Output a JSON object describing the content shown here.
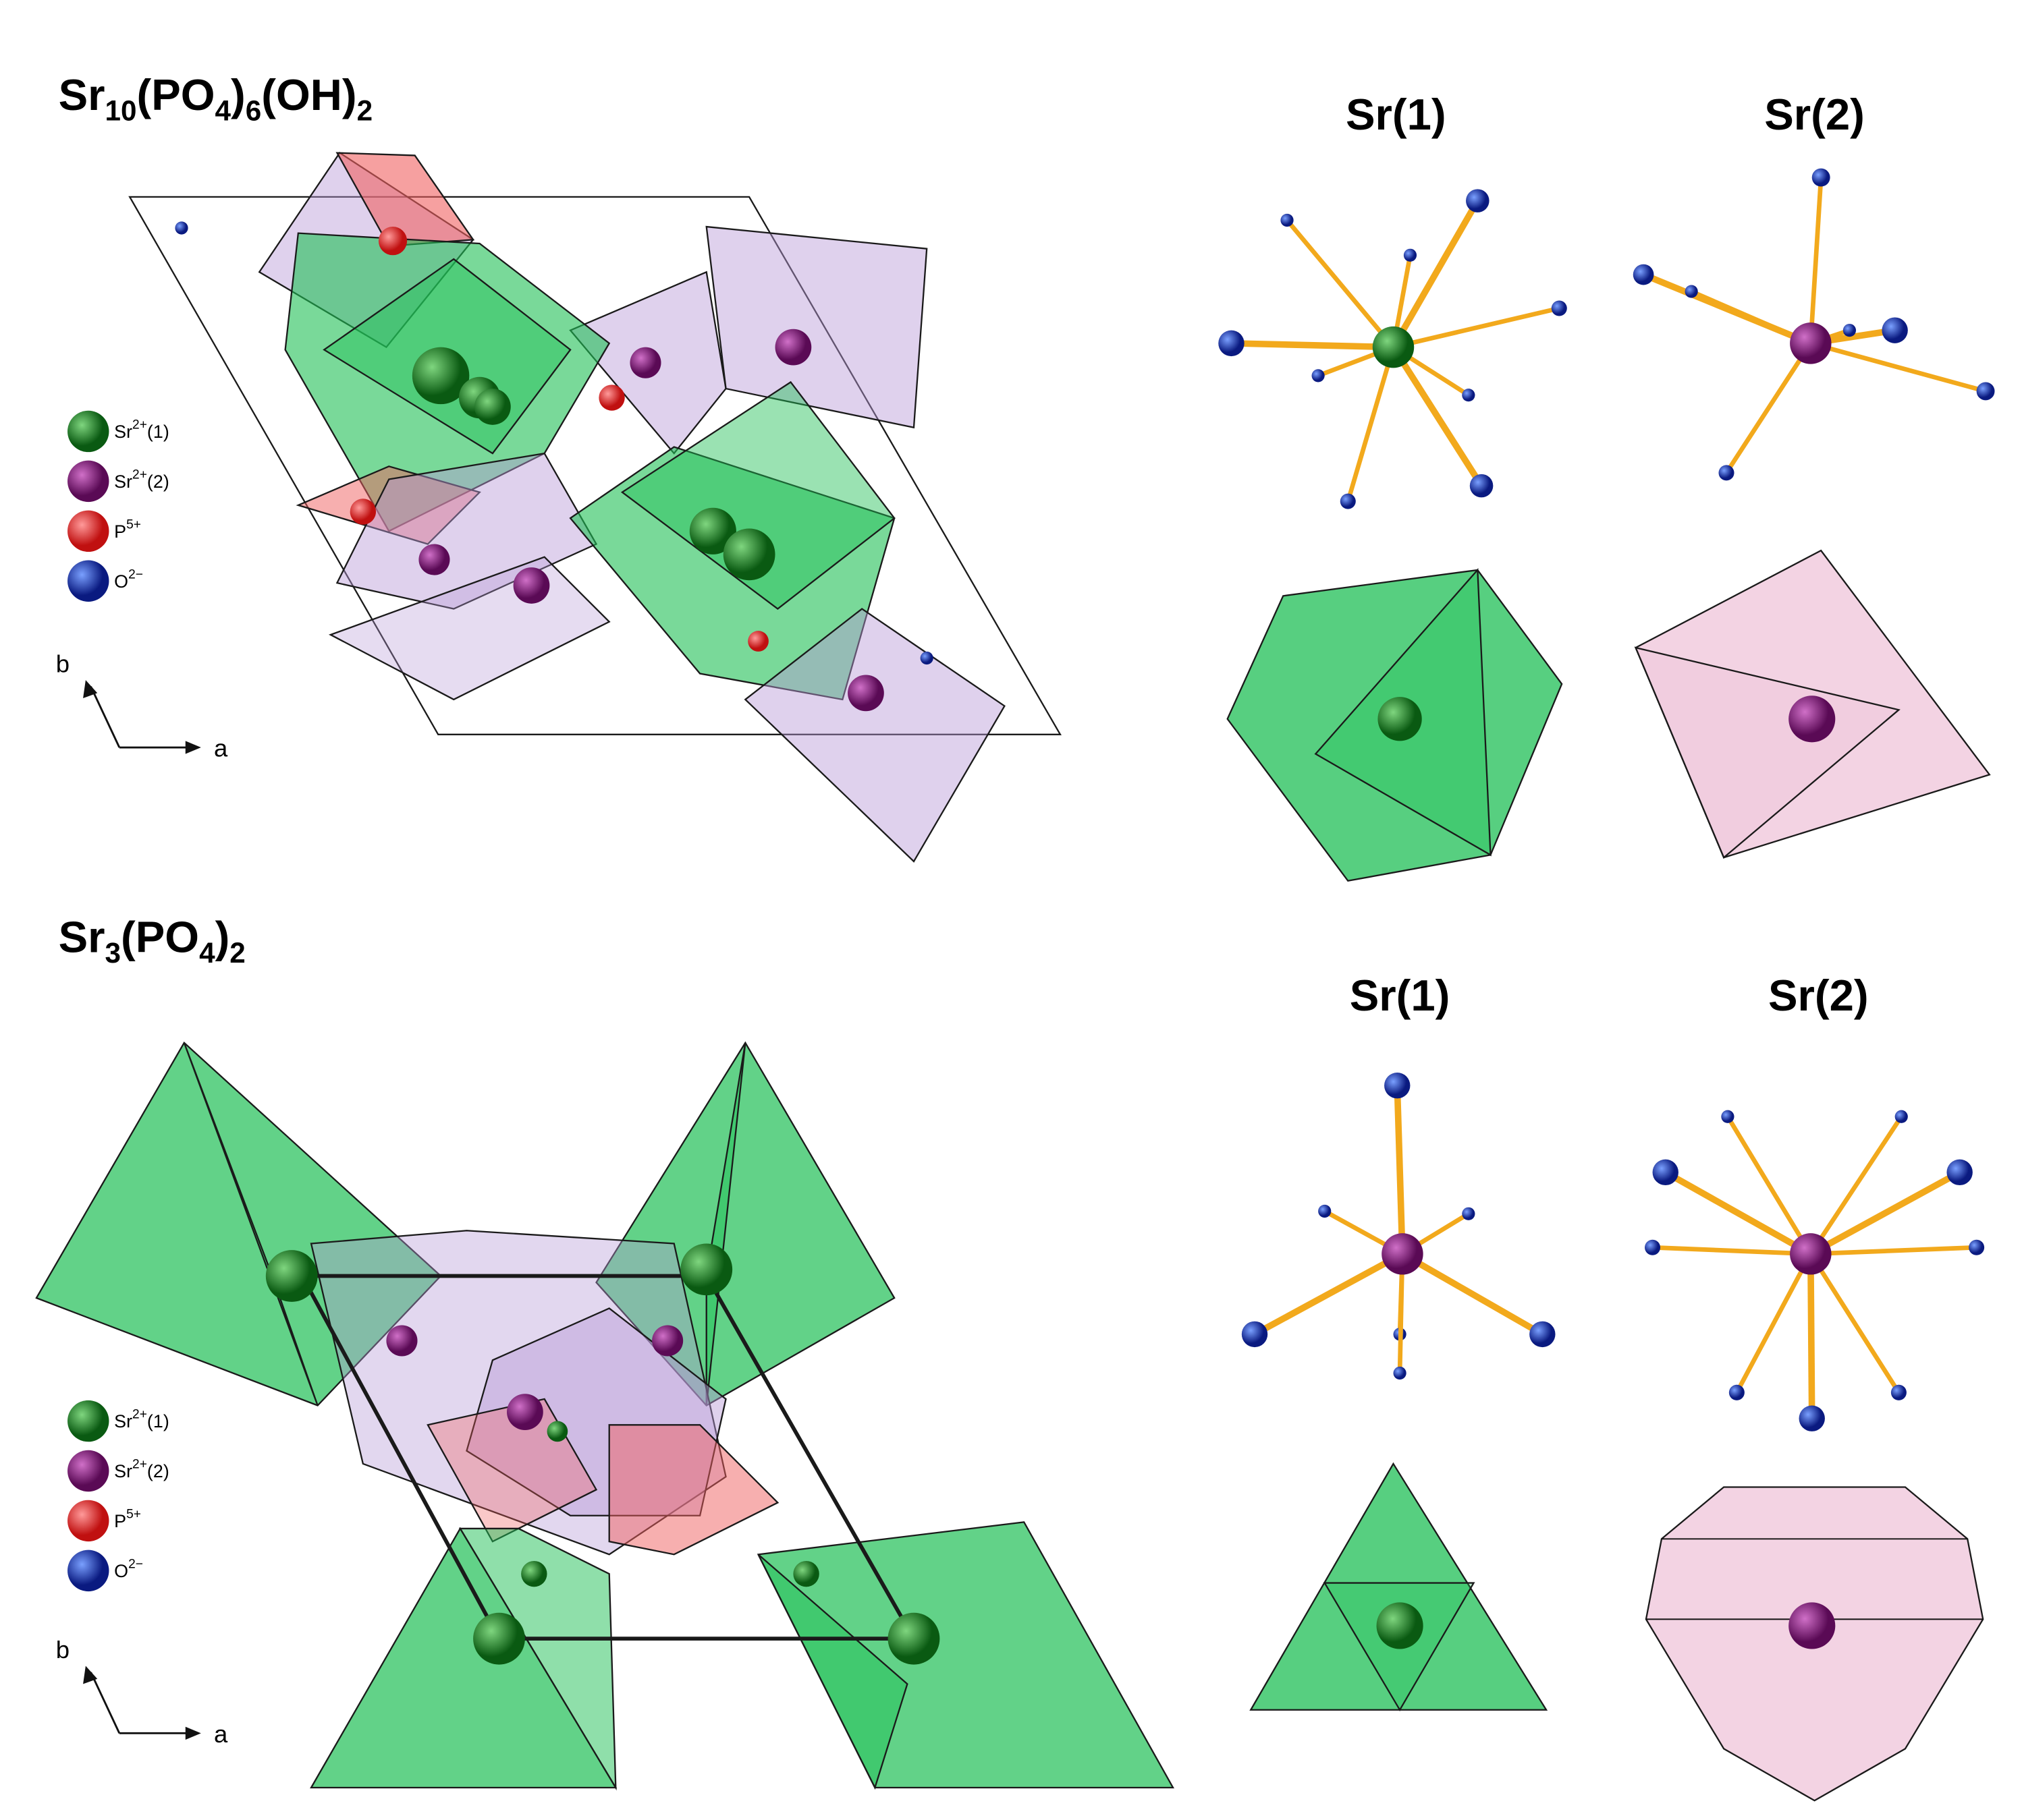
{
  "panels": [
    {
      "formula": [
        "Sr",
        "10",
        "(PO",
        "4",
        ")",
        "6",
        "(OH)",
        "2"
      ],
      "sites": [
        "Sr(1)",
        "Sr(2)"
      ],
      "legend": [
        [
          "Sr",
          "2+",
          "(1)"
        ],
        [
          "Sr",
          "2+",
          "(2)"
        ],
        [
          "P",
          "5+"
        ],
        [
          "O",
          "2−"
        ]
      ],
      "axes": [
        "b",
        "a"
      ]
    },
    {
      "formula": [
        "Sr",
        "3",
        "(PO",
        "4",
        ")",
        "2"
      ],
      "sites": [
        "Sr(1)",
        "Sr(2)"
      ],
      "legend": [
        [
          "Sr",
          "2+",
          "(1)"
        ],
        [
          "Sr",
          "2+",
          "(2)"
        ],
        [
          "P",
          "5+"
        ],
        [
          "O",
          "2−"
        ]
      ],
      "axes": [
        "b",
        "a"
      ]
    }
  ]
}
